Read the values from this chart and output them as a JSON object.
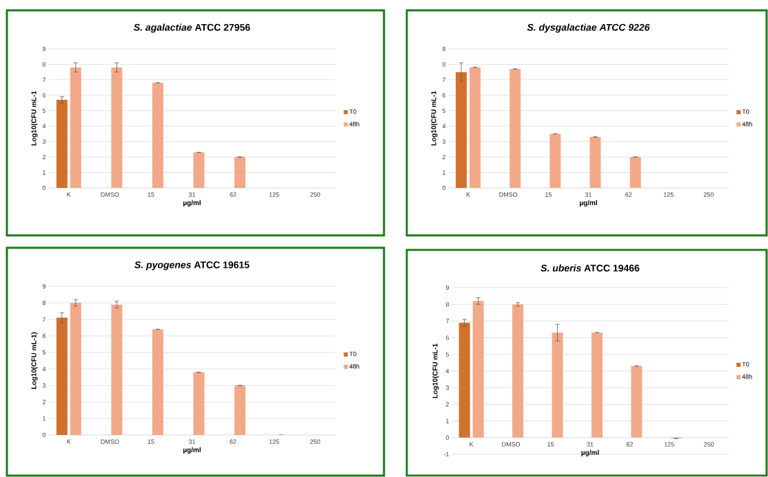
{
  "chart_data": [
    {
      "type": "bar",
      "title": "*S. agalactiae* ATCC 27956",
      "xlabel": "µg/ml",
      "ylabel": "Log10(CFU mL-1",
      "categories": [
        "K",
        "DMSO",
        "15",
        "31",
        "62",
        "125",
        "250"
      ],
      "series": [
        {
          "name": "T0",
          "color": "#d2702c",
          "values": [
            5.7,
            null,
            null,
            null,
            null,
            null,
            null
          ],
          "errors": [
            0.2,
            null,
            null,
            null,
            null,
            null,
            null
          ]
        },
        {
          "name": "48h",
          "color": "#f2a98a",
          "values": [
            7.8,
            7.8,
            6.8,
            2.3,
            2.0,
            null,
            null
          ],
          "errors": [
            0.3,
            0.3,
            0,
            0,
            0,
            null,
            null
          ]
        }
      ],
      "ylim": [
        0,
        9
      ],
      "yticks": [
        0,
        1,
        2,
        3,
        4,
        5,
        6,
        7,
        8,
        9
      ],
      "grid": "y",
      "legend": "right"
    },
    {
      "type": "bar",
      "title": "*S. dysgalactiae* *ATCC 9226*",
      "xlabel": "µg/ml",
      "ylabel": "Log10(CFU mL-1",
      "categories": [
        "K",
        "DMSO",
        "15",
        "31",
        "62",
        "125",
        "250"
      ],
      "series": [
        {
          "name": "T0",
          "color": "#d2702c",
          "values": [
            7.5,
            null,
            null,
            null,
            null,
            null,
            null
          ],
          "errors": [
            0.6,
            null,
            null,
            null,
            null,
            null,
            null
          ]
        },
        {
          "name": "48h",
          "color": "#f2a98a",
          "values": [
            7.8,
            7.7,
            3.5,
            3.3,
            2.0,
            null,
            null
          ],
          "errors": [
            0,
            0,
            0,
            0,
            0,
            null,
            null
          ]
        }
      ],
      "ylim": [
        0,
        9
      ],
      "yticks": [
        0,
        1,
        2,
        3,
        4,
        5,
        6,
        7,
        8,
        9
      ],
      "grid": "y",
      "legend": "right"
    },
    {
      "type": "bar",
      "title": "*S. pyogenes* ATCC 19615",
      "xlabel": "µg/ml",
      "ylabel": "Log10(CFU mL-1)",
      "categories": [
        "K",
        "DMSO",
        "15",
        "31",
        "62",
        "125",
        "250"
      ],
      "series": [
        {
          "name": "T0",
          "color": "#d2702c",
          "values": [
            7.1,
            null,
            null,
            null,
            null,
            null,
            null
          ],
          "errors": [
            0.3,
            null,
            null,
            null,
            null,
            null,
            null
          ]
        },
        {
          "name": "48h",
          "color": "#f2a98a",
          "values": [
            8.0,
            7.9,
            6.4,
            3.8,
            3.0,
            0,
            null
          ],
          "errors": [
            0.2,
            0.2,
            0,
            0,
            0,
            0,
            null
          ]
        }
      ],
      "ylim": [
        0,
        9
      ],
      "yticks": [
        0,
        1,
        2,
        3,
        4,
        5,
        6,
        7,
        8,
        9
      ],
      "grid": "y",
      "legend": "right"
    },
    {
      "type": "bar",
      "title": "*S. uberis* ATCC 19466",
      "xlabel": "µg/ml",
      "ylabel": "Log10(CFU mL-1",
      "categories": [
        "K",
        "DMSO",
        "15",
        "31",
        "62",
        "125",
        "250"
      ],
      "series": [
        {
          "name": "T0",
          "color": "#d2702c",
          "values": [
            6.9,
            null,
            null,
            null,
            null,
            null,
            null
          ],
          "errors": [
            0.2,
            null,
            null,
            null,
            null,
            null,
            null
          ]
        },
        {
          "name": "48h",
          "color": "#f2a98a",
          "values": [
            8.2,
            8.0,
            6.3,
            6.3,
            4.3,
            -0.05,
            null
          ],
          "errors": [
            0.2,
            0.1,
            0.5,
            0,
            0,
            0,
            null
          ]
        }
      ],
      "ylim": [
        -1,
        9
      ],
      "yticks": [
        -1,
        0,
        1,
        2,
        3,
        4,
        5,
        6,
        7,
        8,
        9
      ],
      "grid": "y",
      "legend": "right"
    }
  ]
}
